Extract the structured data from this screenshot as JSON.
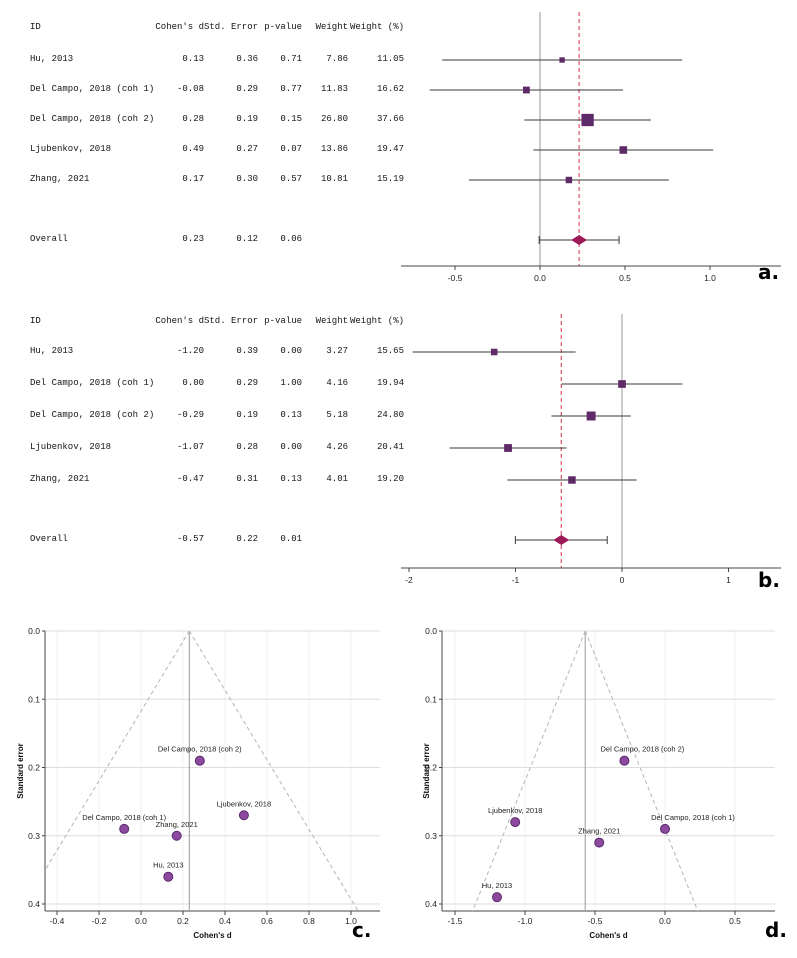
{
  "panel_labels": {
    "a": "a.",
    "b": "b.",
    "c": "c.",
    "d": "d."
  },
  "colors": {
    "study_marker": "#5f2a68",
    "overall_diamond": "#9c1a57",
    "pooled_line": "#e0506a",
    "ref_line": "#9a9a9a",
    "ci_line": "#3a3a3a",
    "axis": "#444444",
    "grid": "#dddddd",
    "grid_vertical": "#f0f0f0",
    "funnel_dashed": "#b5b5b5",
    "funnel_dot_fill": "#8c4a9e",
    "funnel_dot_stroke": "#5b2a6e",
    "funnel_center_line": "#999999"
  },
  "chart_data": [
    {
      "panel": "a",
      "type": "table",
      "plot": "forest",
      "columns": [
        "ID",
        "Cohen's d",
        "Std. Error",
        "p-value",
        "Weight",
        "Weight (%)"
      ],
      "rows": [
        {
          "cells": [
            "Hu, 2013",
            "0.13",
            "0.36",
            "0.71",
            "7.86",
            "11.05"
          ],
          "d": 0.13,
          "se": 0.36,
          "weight_pct": 11.05
        },
        {
          "cells": [
            "Del Campo, 2018 (coh 1)",
            "-0.08",
            "0.29",
            "0.77",
            "11.83",
            "16.62"
          ],
          "d": -0.08,
          "se": 0.29,
          "weight_pct": 16.62
        },
        {
          "cells": [
            "Del Campo, 2018 (coh 2)",
            "0.28",
            "0.19",
            "0.15",
            "26.80",
            "37.66"
          ],
          "d": 0.28,
          "se": 0.19,
          "weight_pct": 37.66
        },
        {
          "cells": [
            "Ljubenkov, 2018",
            "0.49",
            "0.27",
            "0.07",
            "13.86",
            "19.47"
          ],
          "d": 0.49,
          "se": 0.27,
          "weight_pct": 19.47
        },
        {
          "cells": [
            "Zhang, 2021",
            "0.17",
            "0.30",
            "0.57",
            "10.81",
            "15.19"
          ],
          "d": 0.17,
          "se": 0.3,
          "weight_pct": 15.19
        }
      ],
      "overall": {
        "cells": [
          "Overall",
          "0.23",
          "0.12",
          "0.06"
        ],
        "d": 0.23,
        "se": 0.12
      },
      "x_ticks": [
        {
          "v": -0.5,
          "label": "-0.5"
        },
        {
          "v": 0,
          "label": "0.0"
        },
        {
          "v": 0.5,
          "label": "0.5"
        },
        {
          "v": 1,
          "label": "1.0"
        }
      ],
      "ref_line": 0,
      "pooled_line": 0.23,
      "ci_multiplier": 1.96
    },
    {
      "panel": "b",
      "type": "table",
      "plot": "forest",
      "columns": [
        "ID",
        "Cohen's d",
        "Std. Error",
        "p-value",
        "Weight",
        "Weight (%)"
      ],
      "rows": [
        {
          "cells": [
            "Hu, 2013",
            "-1.20",
            "0.39",
            "0.00",
            "3.27",
            "15.65"
          ],
          "d": -1.2,
          "se": 0.39,
          "weight_pct": 15.65
        },
        {
          "cells": [
            "Del Campo, 2018 (coh 1)",
            "0.00",
            "0.29",
            "1.00",
            "4.16",
            "19.94"
          ],
          "d": 0.0,
          "se": 0.29,
          "weight_pct": 19.94
        },
        {
          "cells": [
            "Del Campo, 2018 (coh 2)",
            "-0.29",
            "0.19",
            "0.13",
            "5.18",
            "24.80"
          ],
          "d": -0.29,
          "se": 0.19,
          "weight_pct": 24.8
        },
        {
          "cells": [
            "Ljubenkov, 2018",
            "-1.07",
            "0.28",
            "0.00",
            "4.26",
            "20.41"
          ],
          "d": -1.07,
          "se": 0.28,
          "weight_pct": 20.41
        },
        {
          "cells": [
            "Zhang, 2021",
            "-0.47",
            "0.31",
            "0.13",
            "4.01",
            "19.20"
          ],
          "d": -0.47,
          "se": 0.31,
          "weight_pct": 19.2
        }
      ],
      "overall": {
        "cells": [
          "Overall",
          "-0.57",
          "0.22",
          "0.01"
        ],
        "d": -0.57,
        "se": 0.22
      },
      "x_ticks": [
        {
          "v": -2,
          "label": "-2"
        },
        {
          "v": -1,
          "label": "-1"
        },
        {
          "v": 0,
          "label": "0"
        },
        {
          "v": 1,
          "label": "1"
        }
      ],
      "ref_line": 0,
      "pooled_line": -0.57,
      "ci_multiplier": 1.96
    },
    {
      "panel": "c",
      "type": "scatter",
      "plot": "funnel",
      "xlabel": "Cohen's d",
      "ylabel": "Standard error",
      "center": 0.23,
      "ci_multiplier": 1.96,
      "x_ticks": [
        {
          "v": -0.4,
          "label": "-0.4"
        },
        {
          "v": -0.2,
          "label": "-0.2"
        },
        {
          "v": 0,
          "label": "0.0"
        },
        {
          "v": 0.2,
          "label": "0.2"
        },
        {
          "v": 0.4,
          "label": "0.4"
        },
        {
          "v": 0.6,
          "label": "0.6"
        },
        {
          "v": 0.8,
          "label": "0.8"
        },
        {
          "v": 1,
          "label": "1.0"
        }
      ],
      "y_ticks": [
        {
          "v": 0,
          "label": "0.0"
        },
        {
          "v": 0.1,
          "label": "0.1"
        },
        {
          "v": 0.2,
          "label": "0.2"
        },
        {
          "v": 0.3,
          "label": "0.3"
        },
        {
          "v": 0.4,
          "label": "0.4"
        }
      ],
      "points": [
        {
          "label": "Del Campo, 2018 (coh 2)",
          "x": 0.28,
          "y": 0.19
        },
        {
          "label": "Ljubenkov, 2018",
          "x": 0.49,
          "y": 0.27
        },
        {
          "label": "Del Campo, 2018 (coh 1)",
          "x": -0.08,
          "y": 0.29
        },
        {
          "label": "Zhang, 2021",
          "x": 0.17,
          "y": 0.3
        },
        {
          "label": "Hu, 2013",
          "x": 0.13,
          "y": 0.36
        }
      ]
    },
    {
      "panel": "d",
      "type": "scatter",
      "plot": "funnel",
      "xlabel": "Cohen's d",
      "ylabel": "Standard error",
      "center": -0.57,
      "ci_multiplier": 1.96,
      "x_ticks": [
        {
          "v": -1.5,
          "label": "-1.5"
        },
        {
          "v": -1.0,
          "label": "-1.0"
        },
        {
          "v": -0.5,
          "label": "-0.5"
        },
        {
          "v": 0,
          "label": "0.0"
        },
        {
          "v": 0.5,
          "label": "0.5"
        }
      ],
      "y_ticks": [
        {
          "v": 0,
          "label": "0.0"
        },
        {
          "v": 0.1,
          "label": "0.1"
        },
        {
          "v": 0.2,
          "label": "0.2"
        },
        {
          "v": 0.3,
          "label": "0.3"
        },
        {
          "v": 0.4,
          "label": "0.4"
        }
      ],
      "points": [
        {
          "label": "Del Campo, 2018 (coh 2)",
          "x": -0.29,
          "y": 0.19,
          "label_dx": 18
        },
        {
          "label": "Ljubenkov, 2018",
          "x": -1.07,
          "y": 0.28
        },
        {
          "label": "Del Campo, 2018 (coh 1)",
          "x": 0.0,
          "y": 0.29,
          "label_dx": 28
        },
        {
          "label": "Zhang, 2021",
          "x": -0.47,
          "y": 0.31
        },
        {
          "label": "Hu, 2013",
          "x": -1.2,
          "y": 0.39
        }
      ]
    }
  ]
}
